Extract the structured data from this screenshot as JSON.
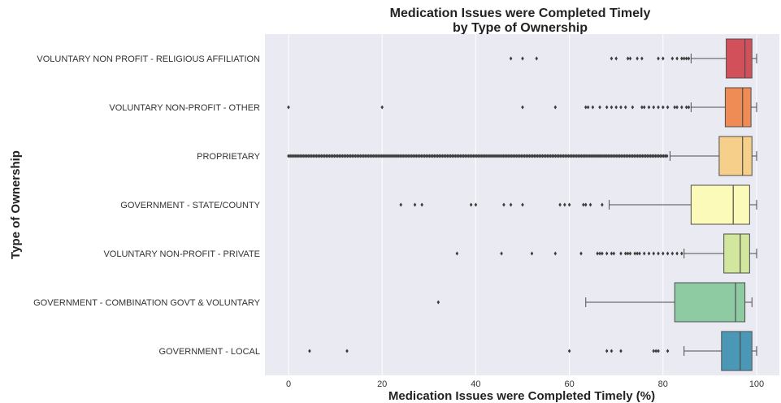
{
  "chart_data": {
    "type": "box",
    "orientation": "horizontal",
    "title": [
      "Medication Issues were Completed Timely",
      "by Type of Ownership"
    ],
    "xlabel": "Medication Issues were Completed Timely (%)",
    "ylabel": "Type of Ownership",
    "xlim": [
      -5,
      101
    ],
    "xticks": [
      "0",
      "20",
      "40",
      "60",
      "80",
      "100"
    ],
    "grid": true,
    "categories": [
      {
        "name": "VOLUNTARY NON PROFIT - RELIGIOUS AFFILIATION",
        "color": "#d2505a",
        "whisker_low": 86,
        "q1": 93.5,
        "median": 97.5,
        "q3": 99,
        "whisker_high": 100,
        "outliers": [
          47.5,
          50,
          53,
          69,
          70,
          72.5,
          73,
          74.5,
          75.5,
          79,
          80,
          82,
          83,
          84,
          84.5,
          85,
          85.5
        ]
      },
      {
        "name": "VOLUNTARY NON-PROFIT - OTHER",
        "color": "#ef8b55",
        "whisker_low": 86,
        "q1": 93.3,
        "median": 97,
        "q3": 98.8,
        "whisker_high": 100,
        "outliers": [
          0,
          20,
          50,
          57,
          63.5,
          64,
          65,
          66.5,
          68,
          69,
          70,
          71,
          72,
          73.5,
          75.5,
          76,
          77,
          78,
          79,
          80,
          81,
          82.5,
          83,
          84,
          85,
          85.5
        ]
      },
      {
        "name": "PROPRIETARY",
        "color": "#f6d08a",
        "whisker_low": 81.5,
        "q1": 92,
        "median": 97,
        "q3": 99,
        "whisker_high": 100,
        "outlier_range": [
          0,
          81
        ],
        "outliers": []
      },
      {
        "name": "GOVERNMENT - STATE/COUNTY",
        "color": "#fbfab8",
        "whisker_low": 68.5,
        "q1": 86,
        "median": 95,
        "q3": 98.5,
        "whisker_high": 100,
        "outliers": [
          24,
          27,
          28.5,
          39,
          40,
          46,
          47.5,
          50,
          58,
          59,
          60,
          63,
          63.5,
          64.5,
          67
        ]
      },
      {
        "name": "VOLUNTARY NON-PROFIT - PRIVATE",
        "color": "#d3e69e",
        "whisker_low": 84.5,
        "q1": 93,
        "median": 96.5,
        "q3": 98.5,
        "whisker_high": 100,
        "outliers": [
          36,
          45.5,
          52,
          57,
          62.5,
          66,
          66.5,
          67,
          68,
          69,
          69.5,
          71,
          72,
          72.5,
          73,
          74,
          74.5,
          75,
          76,
          77,
          78,
          79,
          80,
          81,
          82,
          83,
          84
        ]
      },
      {
        "name": "GOVERNMENT - COMBINATION GOVT & VOLUNTARY",
        "color": "#8ecaa2",
        "whisker_low": 63.5,
        "q1": 82.5,
        "median": 95.5,
        "q3": 97.5,
        "whisker_high": 99,
        "outliers": [
          32
        ]
      },
      {
        "name": "GOVERNMENT - LOCAL",
        "color": "#4b98b6",
        "whisker_low": 84.5,
        "q1": 92.5,
        "median": 96.5,
        "q3": 99,
        "whisker_high": 100,
        "outliers": [
          4.5,
          12.5,
          60,
          68,
          69,
          71,
          78,
          78.5,
          79,
          81
        ]
      }
    ]
  }
}
